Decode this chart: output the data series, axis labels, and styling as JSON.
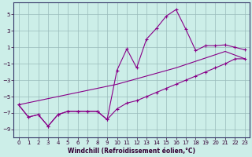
{
  "xlabel": "Windchill (Refroidissement éolien,°C)",
  "bg_color": "#cceee8",
  "line_color": "#880088",
  "grid_color": "#99bbbb",
  "xlim": [
    -0.5,
    23.5
  ],
  "ylim": [
    -10,
    6.5
  ],
  "yticks": [
    5,
    3,
    1,
    -1,
    -3,
    -5,
    -7,
    -9
  ],
  "xticks": [
    0,
    1,
    2,
    3,
    4,
    5,
    6,
    7,
    8,
    9,
    10,
    11,
    12,
    13,
    14,
    15,
    16,
    17,
    18,
    19,
    20,
    21,
    22,
    23
  ],
  "line1_x": [
    0,
    1,
    2,
    3,
    4,
    5,
    6,
    7,
    8,
    9,
    10,
    11,
    12,
    13,
    14,
    15,
    16,
    17,
    18,
    19,
    20,
    21,
    22,
    23
  ],
  "line1_y": [
    -6.0,
    -7.5,
    -7.2,
    -8.6,
    -7.2,
    -6.8,
    -6.8,
    -6.8,
    -6.8,
    -7.8,
    -1.8,
    0.8,
    -1.5,
    2.0,
    3.3,
    4.8,
    5.6,
    3.2,
    0.6,
    1.2,
    1.2,
    1.3,
    1.0,
    0.7
  ],
  "line2_x": [
    0,
    1,
    2,
    3,
    4,
    5,
    6,
    7,
    8,
    9,
    10,
    11,
    12,
    13,
    14,
    15,
    16,
    17,
    18,
    19,
    20,
    21,
    22,
    23
  ],
  "line2_y": [
    -6.0,
    -7.5,
    -7.2,
    -8.6,
    -7.2,
    -6.8,
    -6.8,
    -6.8,
    -6.8,
    -7.8,
    -6.5,
    -5.8,
    -5.5,
    -5.0,
    -4.5,
    -4.0,
    -3.5,
    -3.0,
    -2.5,
    -2.0,
    -1.5,
    -1.0,
    -0.4,
    -0.4
  ],
  "line3_x": [
    0,
    10,
    16,
    21,
    23
  ],
  "line3_y": [
    -6.0,
    -3.5,
    -1.5,
    0.5,
    -0.4
  ]
}
